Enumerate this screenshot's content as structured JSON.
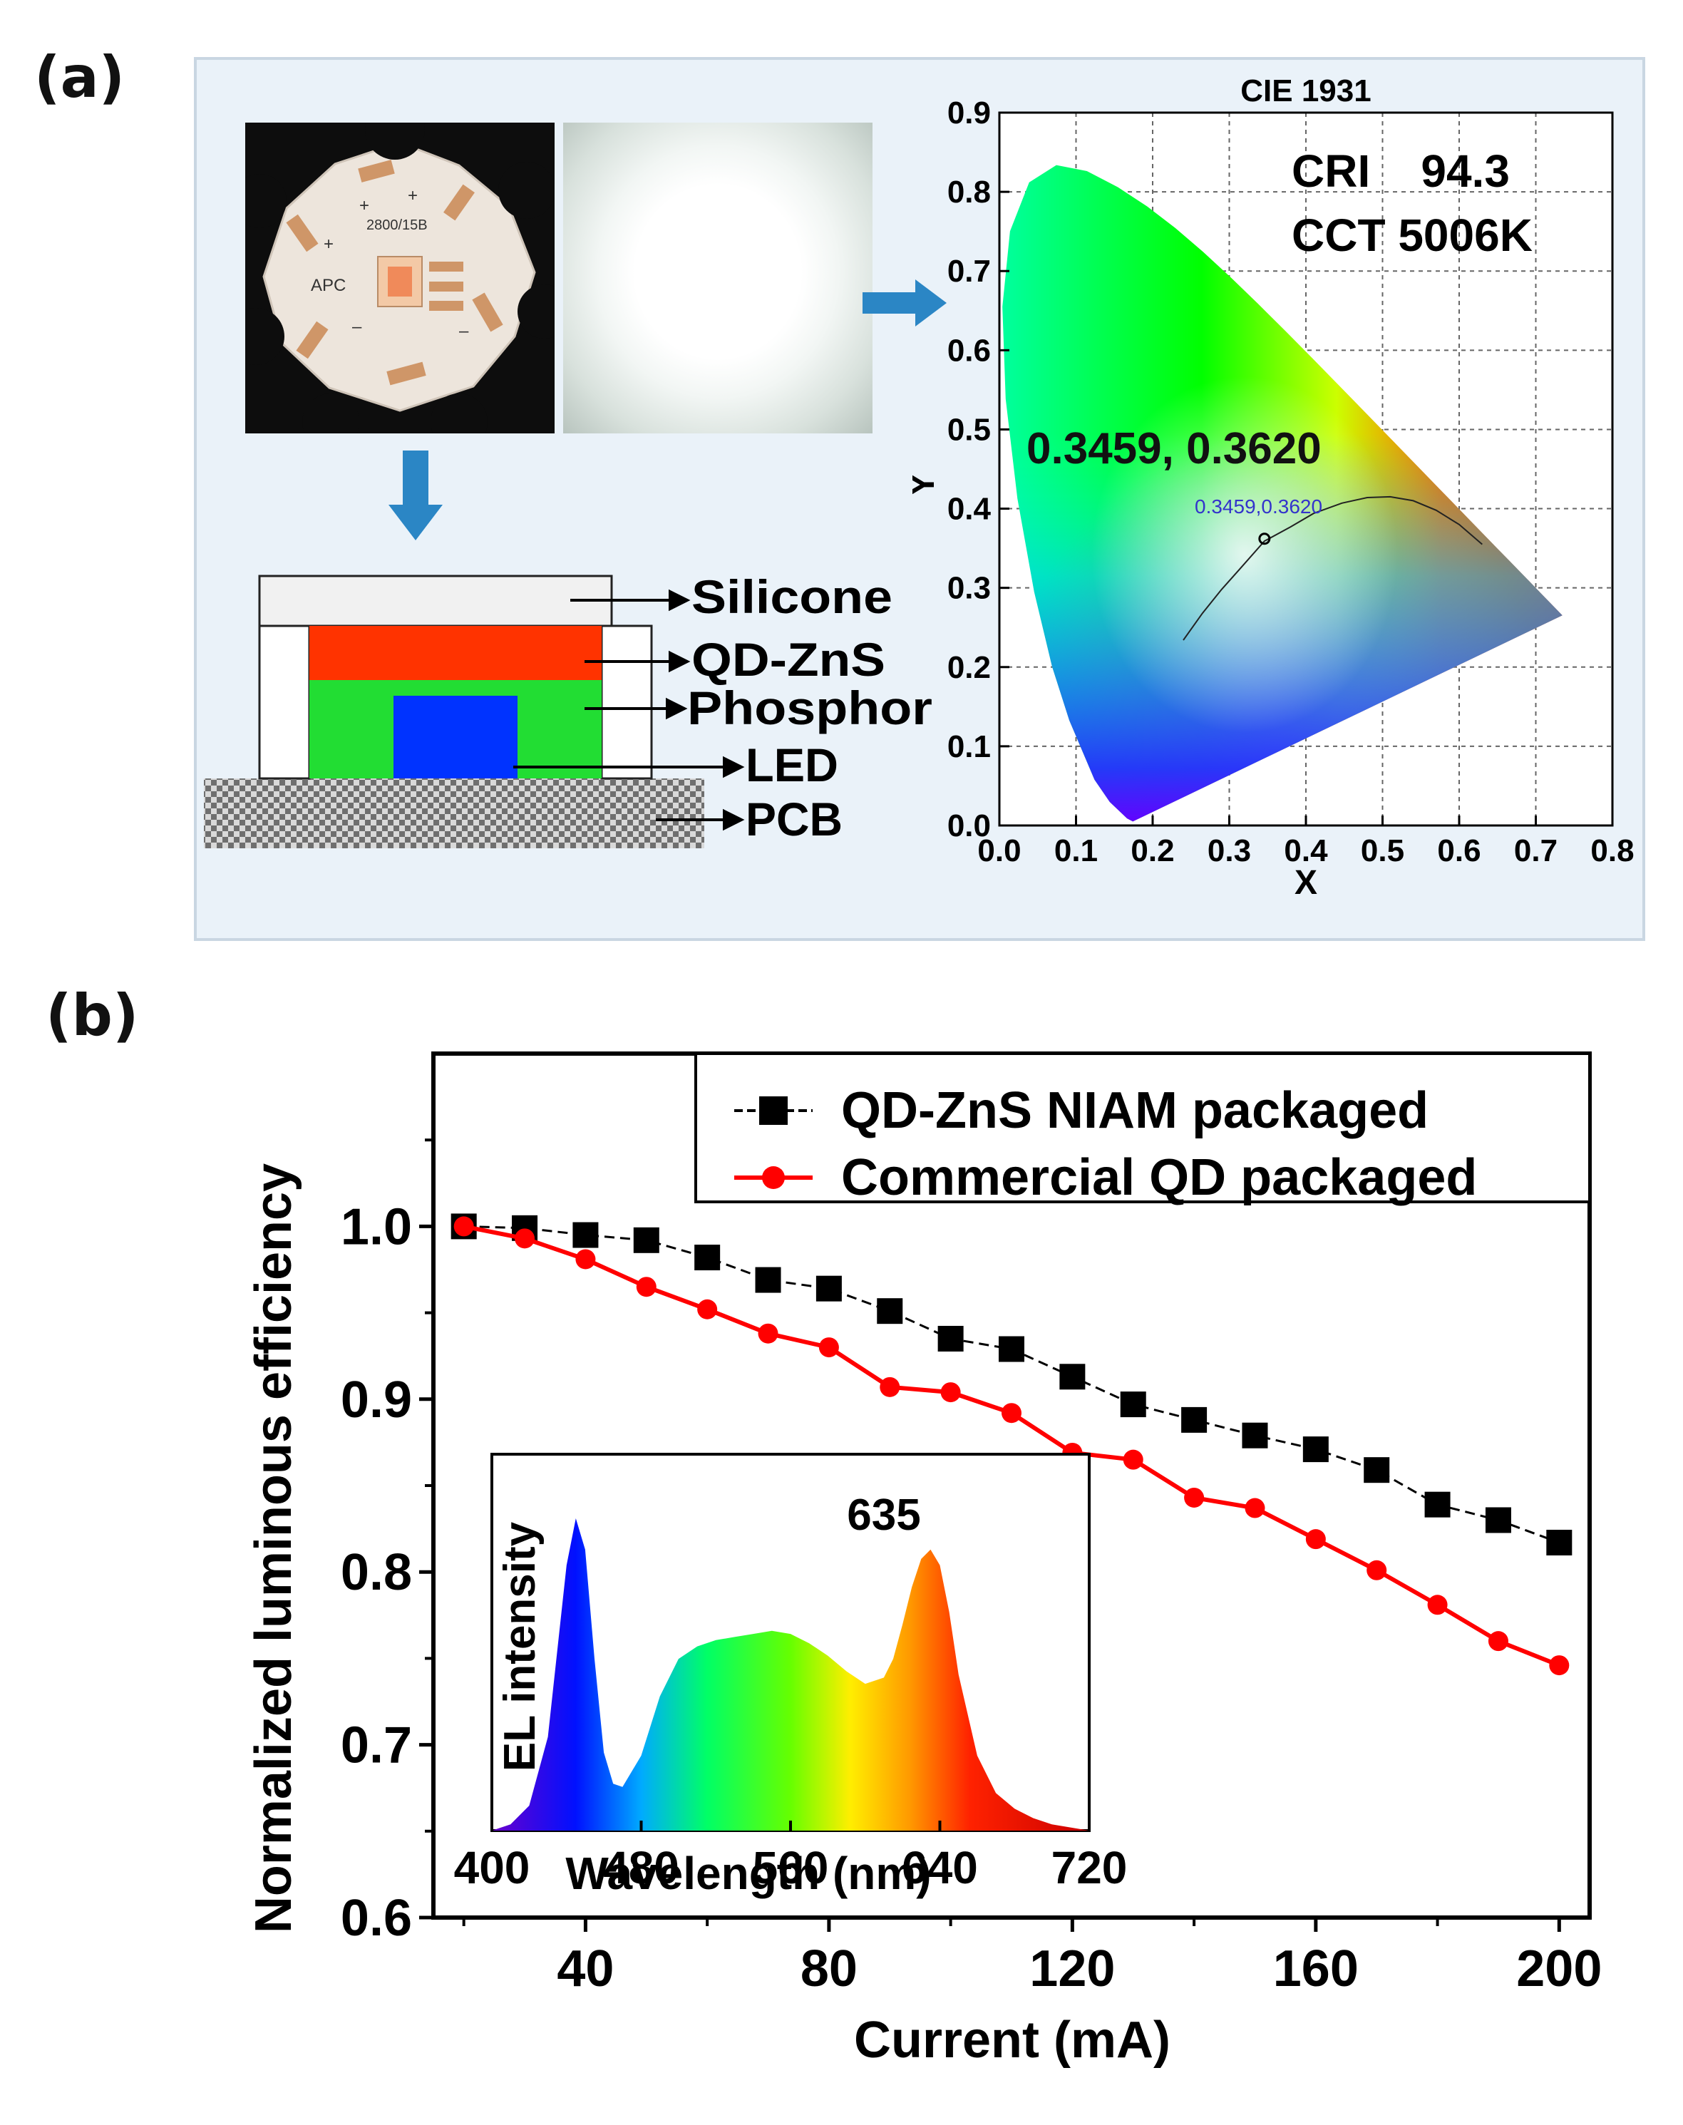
{
  "panel_a": {
    "label": "(a)",
    "chip_labels": {
      "model": "2800/15B",
      "maker": "APC",
      "plus": "+",
      "minus": "–"
    },
    "layers": [
      "Silicone",
      "QD-ZnS",
      "Phosphor",
      "LED",
      "PCB"
    ],
    "colors": {
      "silicone": "#f1f1f1",
      "qd": "#ff3300",
      "phosphor": "#22dd33",
      "led": "#0033ff",
      "arrow": "#2b86c5"
    }
  },
  "panel_b": {
    "label": "(b)"
  },
  "chart_data": [
    {
      "type": "scatter",
      "title": "CIE 1931",
      "xlabel": "X",
      "ylabel": "Y",
      "xlim": [
        0.0,
        0.8
      ],
      "ylim": [
        0.0,
        0.9
      ],
      "xticks": [
        "0.0",
        "0.1",
        "0.2",
        "0.3",
        "0.4",
        "0.5",
        "0.6",
        "0.7",
        "0.8"
      ],
      "yticks": [
        "0.0",
        "0.1",
        "0.2",
        "0.3",
        "0.4",
        "0.5",
        "0.6",
        "0.7",
        "0.8",
        "0.9"
      ],
      "grid": true,
      "annotations": {
        "cri": "CRI    94.3",
        "cct": "CCT 5006K",
        "coord_big": "0.3459, 0.3620",
        "coord_small": "0.3459,0.3620"
      },
      "point": {
        "x": 0.3459,
        "y": 0.362
      },
      "spectral_locus": [
        [
          0.1741,
          0.005
        ],
        [
          0.1666,
          0.0089
        ],
        [
          0.144,
          0.0297
        ],
        [
          0.1241,
          0.0578
        ],
        [
          0.0913,
          0.1327
        ],
        [
          0.0687,
          0.2007
        ],
        [
          0.0454,
          0.295
        ],
        [
          0.0235,
          0.4127
        ],
        [
          0.0082,
          0.5384
        ],
        [
          0.0039,
          0.6548
        ],
        [
          0.0139,
          0.7502
        ],
        [
          0.0389,
          0.812
        ],
        [
          0.0743,
          0.8338
        ],
        [
          0.1142,
          0.8262
        ],
        [
          0.1547,
          0.8059
        ],
        [
          0.1929,
          0.7816
        ],
        [
          0.2296,
          0.7543
        ],
        [
          0.2658,
          0.7243
        ],
        [
          0.3016,
          0.6923
        ],
        [
          0.3373,
          0.6589
        ],
        [
          0.3731,
          0.6245
        ],
        [
          0.4087,
          0.5896
        ],
        [
          0.4441,
          0.5547
        ],
        [
          0.4788,
          0.5202
        ],
        [
          0.5125,
          0.4866
        ],
        [
          0.5448,
          0.4544
        ],
        [
          0.5752,
          0.4242
        ],
        [
          0.6029,
          0.3965
        ],
        [
          0.627,
          0.3725
        ],
        [
          0.6482,
          0.3514
        ],
        [
          0.6658,
          0.334
        ],
        [
          0.6801,
          0.3197
        ],
        [
          0.6915,
          0.3083
        ],
        [
          0.7006,
          0.2993
        ],
        [
          0.7079,
          0.292
        ],
        [
          0.7347,
          0.2653
        ]
      ],
      "planckian_locus": [
        [
          0.24,
          0.234
        ],
        [
          0.265,
          0.268
        ],
        [
          0.29,
          0.298
        ],
        [
          0.313,
          0.323
        ],
        [
          0.3459,
          0.359
        ],
        [
          0.38,
          0.377
        ],
        [
          0.41,
          0.394
        ],
        [
          0.447,
          0.407
        ],
        [
          0.48,
          0.414
        ],
        [
          0.51,
          0.415
        ],
        [
          0.54,
          0.41
        ],
        [
          0.57,
          0.398
        ],
        [
          0.6,
          0.38
        ],
        [
          0.63,
          0.355
        ]
      ]
    },
    {
      "type": "line",
      "xlabel": "Current (mA)",
      "ylabel": "Normalized luminous efficiency",
      "xlim": [
        15,
        205
      ],
      "ylim": [
        0.6,
        1.1
      ],
      "xticks": [
        40,
        80,
        120,
        160,
        200
      ],
      "yticks": [
        0.6,
        0.7,
        0.8,
        0.9,
        1.0
      ],
      "xtick_labels": [
        "40",
        "80",
        "120",
        "160",
        "200"
      ],
      "ytick_labels": [
        "0.6",
        "0.7",
        "0.8",
        "0.9",
        "1.0"
      ],
      "legend_position": "top-right",
      "x": [
        20,
        30,
        40,
        50,
        60,
        70,
        80,
        90,
        100,
        110,
        120,
        130,
        140,
        150,
        160,
        170,
        180,
        190,
        200
      ],
      "series": [
        {
          "name": "QD-ZnS NIAM packaged",
          "color": "#000000",
          "marker": "square",
          "values": [
            1.0,
            0.999,
            0.995,
            0.992,
            0.982,
            0.969,
            0.964,
            0.951,
            0.935,
            0.929,
            0.913,
            0.897,
            0.888,
            0.879,
            0.871,
            0.859,
            0.839,
            0.83,
            0.817
          ]
        },
        {
          "name": "Commercial QD packaged",
          "color": "#ff0000",
          "marker": "circle",
          "values": [
            1.0,
            0.993,
            0.981,
            0.965,
            0.952,
            0.938,
            0.93,
            0.907,
            0.904,
            0.892,
            0.869,
            0.865,
            0.843,
            0.837,
            0.819,
            0.801,
            0.781,
            0.76,
            0.746
          ]
        }
      ]
    },
    {
      "type": "area",
      "xlabel": "Wavelength (nm)",
      "ylabel": "EL intensity",
      "xlim": [
        400,
        720
      ],
      "xticks": [
        400,
        480,
        560,
        640,
        720
      ],
      "xtick_labels": [
        "400",
        "480",
        "560",
        "640",
        "720"
      ],
      "annotations": {
        "peak_label": "635"
      },
      "x": [
        400,
        410,
        420,
        430,
        440,
        445,
        450,
        455,
        460,
        465,
        470,
        480,
        490,
        500,
        510,
        520,
        530,
        540,
        550,
        560,
        570,
        580,
        590,
        600,
        610,
        615,
        620,
        625,
        630,
        635,
        640,
        645,
        650,
        660,
        670,
        680,
        690,
        700,
        710,
        720
      ],
      "values": [
        0.0,
        0.02,
        0.08,
        0.3,
        0.85,
        1.0,
        0.9,
        0.55,
        0.25,
        0.15,
        0.14,
        0.24,
        0.43,
        0.55,
        0.59,
        0.61,
        0.62,
        0.63,
        0.64,
        0.63,
        0.6,
        0.56,
        0.51,
        0.47,
        0.49,
        0.55,
        0.66,
        0.78,
        0.87,
        0.9,
        0.85,
        0.7,
        0.5,
        0.24,
        0.12,
        0.07,
        0.04,
        0.02,
        0.01,
        0.0
      ]
    }
  ]
}
